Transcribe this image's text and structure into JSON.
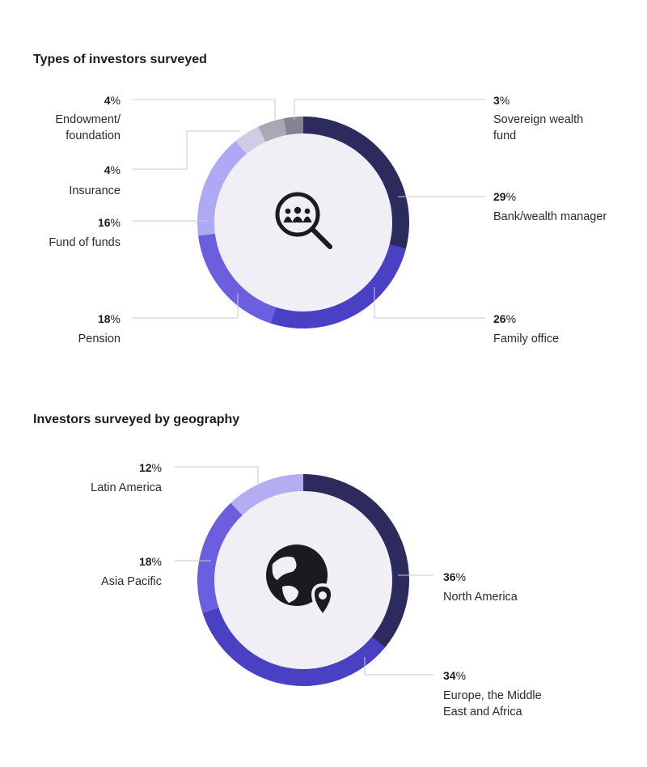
{
  "colors": {
    "inner_fill": "#efeff5",
    "icon": "#1a1a1f",
    "leader": "#c9c9d2"
  },
  "chart_data": [
    {
      "type": "pie",
      "title": "Types of investors surveyed",
      "center_icon": "search-people-icon",
      "slices": [
        {
          "label": "Bank/wealth manager",
          "value": 29,
          "color": "#2d2a5e"
        },
        {
          "label": "Family office",
          "value": 26,
          "color": "#4a40c4"
        },
        {
          "label": "Pension",
          "value": 18,
          "color": "#6b5fe0"
        },
        {
          "label": "Fund of funds",
          "value": 16,
          "color": "#aea9f2"
        },
        {
          "label": "Insurance",
          "value": 4,
          "color": "#cfcde6"
        },
        {
          "label": "Endowment/ foundation",
          "value": 4,
          "color": "#a9a8b5"
        },
        {
          "label": "Sovereign wealth fund",
          "value": 3,
          "color": "#848393"
        }
      ]
    },
    {
      "type": "pie",
      "title": "Investors surveyed by geography",
      "center_icon": "globe-location-icon",
      "slices": [
        {
          "label": "North America",
          "value": 36,
          "color": "#2d2a5e"
        },
        {
          "label": "Europe, the Middle East and Africa",
          "value": 34,
          "color": "#4a40c4"
        },
        {
          "label": "Asia Pacific",
          "value": 18,
          "color": "#6b5fe0"
        },
        {
          "label": "Latin America",
          "value": 12,
          "color": "#b3aef2"
        }
      ]
    }
  ]
}
